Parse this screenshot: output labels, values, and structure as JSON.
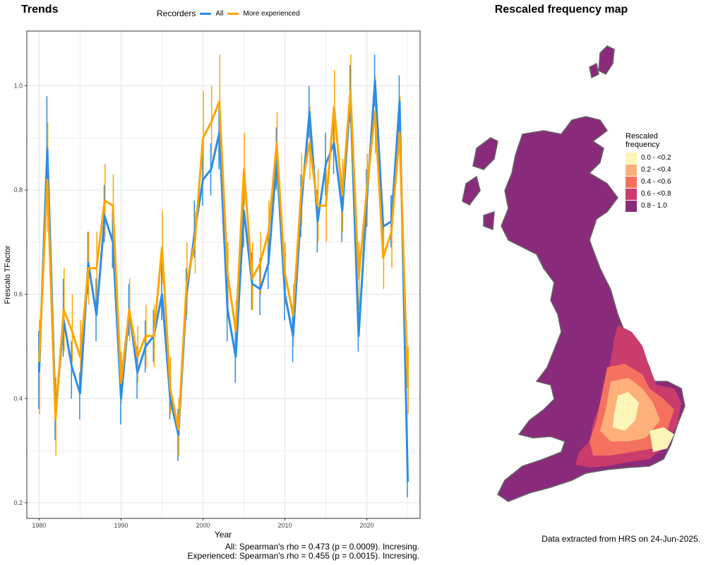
{
  "titles": {
    "trends": "Trends",
    "map": "Rescaled frequency map"
  },
  "legend": {
    "title": "Recorders",
    "all": "All",
    "experienced": "More experienced"
  },
  "stats": {
    "line1": "All: Spearman's rho = 0.473 (p = 0.0009). Incresing.",
    "line2": "Experienced: Spearman's rho = 0.455 (p = 0.0015). Incresing."
  },
  "footer": "Data extracted from HRS on 24-Jun-2025.",
  "map_legend": {
    "title_line1": "Rescaled",
    "title_line2": "frequency",
    "items": [
      {
        "label": "0.0 - <0.2",
        "color": "#fcf5b8"
      },
      {
        "label": "0.2 - <0.4",
        "color": "#fdb07a"
      },
      {
        "label": "0.4 - <0.6",
        "color": "#f4715f"
      },
      {
        "label": "0.6 - <0.8",
        "color": "#c93c6b"
      },
      {
        "label": "0.8 - 1.0",
        "color": "#8a2a7b"
      }
    ]
  },
  "chart_data": {
    "type": "line",
    "xlabel": "Year",
    "ylabel": "Frescalo TFactor",
    "xlim": [
      1978.5,
      2026.5
    ],
    "ylim": [
      0.17,
      1.105
    ],
    "xticks": [
      1980,
      1990,
      2000,
      2010,
      2020
    ],
    "yticks": [
      0.2,
      0.4,
      0.6,
      0.8,
      1.0
    ],
    "ytick_labels": [
      "0.2",
      "0.4",
      "0.6",
      "0.8",
      "1.0"
    ],
    "grid": true,
    "legend_position": "top",
    "x": [
      1980,
      1981,
      1982,
      1983,
      1984,
      1985,
      1986,
      1987,
      1988,
      1989,
      1990,
      1991,
      1992,
      1993,
      1994,
      1995,
      1996,
      1997,
      1998,
      1999,
      2000,
      2001,
      2002,
      2003,
      2004,
      2005,
      2006,
      2007,
      2008,
      2009,
      2010,
      2011,
      2012,
      2013,
      2014,
      2015,
      2016,
      2017,
      2018,
      2019,
      2020,
      2021,
      2022,
      2023,
      2024,
      2025
    ],
    "series": [
      {
        "name": "All",
        "color": "#2b8de8",
        "values": [
          0.45,
          0.88,
          0.37,
          0.55,
          0.46,
          0.41,
          0.66,
          0.56,
          0.75,
          0.7,
          0.4,
          0.57,
          0.45,
          0.5,
          0.52,
          0.6,
          0.4,
          0.33,
          0.6,
          0.72,
          0.82,
          0.84,
          0.91,
          0.57,
          0.48,
          0.76,
          0.62,
          0.61,
          0.66,
          0.86,
          0.6,
          0.52,
          0.77,
          0.95,
          0.74,
          0.85,
          0.89,
          0.76,
          0.98,
          0.52,
          0.78,
          1.01,
          0.73,
          0.74,
          0.97,
          0.24
        ],
        "lower": [
          0.38,
          0.77,
          0.32,
          0.48,
          0.4,
          0.36,
          0.6,
          0.51,
          0.7,
          0.65,
          0.35,
          0.52,
          0.4,
          0.45,
          0.47,
          0.55,
          0.36,
          0.28,
          0.55,
          0.67,
          0.77,
          0.79,
          0.84,
          0.51,
          0.43,
          0.69,
          0.57,
          0.56,
          0.61,
          0.8,
          0.55,
          0.47,
          0.71,
          0.9,
          0.68,
          0.79,
          0.83,
          0.7,
          0.93,
          0.49,
          0.73,
          0.96,
          0.69,
          0.69,
          0.91,
          0.21
        ],
        "upper": [
          0.53,
          0.98,
          0.43,
          0.63,
          0.51,
          0.45,
          0.72,
          0.63,
          0.81,
          0.76,
          0.45,
          0.62,
          0.5,
          0.55,
          0.57,
          0.66,
          0.44,
          0.38,
          0.65,
          0.78,
          0.88,
          0.89,
          0.97,
          0.63,
          0.53,
          0.83,
          0.68,
          0.67,
          0.72,
          0.92,
          0.66,
          0.57,
          0.83,
          1.0,
          0.8,
          0.91,
          0.95,
          0.82,
          1.04,
          0.56,
          0.84,
          1.06,
          0.77,
          0.79,
          1.02,
          0.28
        ]
      },
      {
        "name": "More experienced",
        "color": "#ffa500",
        "values": [
          0.47,
          0.82,
          0.36,
          0.57,
          0.53,
          0.48,
          0.65,
          0.65,
          0.78,
          0.77,
          0.43,
          0.57,
          0.48,
          0.52,
          0.52,
          0.69,
          0.42,
          0.34,
          0.62,
          0.7,
          0.9,
          0.93,
          0.97,
          0.64,
          0.53,
          0.84,
          0.63,
          0.66,
          0.72,
          0.89,
          0.64,
          0.56,
          0.8,
          0.89,
          0.77,
          0.77,
          0.96,
          0.79,
          0.99,
          0.63,
          0.8,
          0.95,
          0.67,
          0.72,
          0.91,
          0.42
        ],
        "lower": [
          0.37,
          0.72,
          0.29,
          0.49,
          0.47,
          0.41,
          0.58,
          0.58,
          0.71,
          0.7,
          0.39,
          0.51,
          0.43,
          0.46,
          0.46,
          0.62,
          0.37,
          0.29,
          0.56,
          0.64,
          0.82,
          0.86,
          0.9,
          0.58,
          0.48,
          0.77,
          0.57,
          0.6,
          0.66,
          0.82,
          0.58,
          0.5,
          0.73,
          0.82,
          0.7,
          0.7,
          0.89,
          0.72,
          0.92,
          0.57,
          0.73,
          0.87,
          0.61,
          0.65,
          0.84,
          0.37
        ],
        "upper": [
          0.55,
          0.93,
          0.44,
          0.65,
          0.6,
          0.55,
          0.72,
          0.72,
          0.85,
          0.83,
          0.49,
          0.63,
          0.54,
          0.58,
          0.58,
          0.76,
          0.48,
          0.4,
          0.7,
          0.76,
          0.99,
          1.0,
          1.06,
          0.7,
          0.59,
          0.91,
          0.7,
          0.72,
          0.78,
          0.95,
          0.7,
          0.62,
          0.87,
          0.96,
          0.84,
          0.84,
          1.03,
          0.86,
          1.06,
          0.7,
          0.87,
          1.02,
          0.74,
          0.79,
          0.98,
          0.5
        ]
      }
    ]
  }
}
